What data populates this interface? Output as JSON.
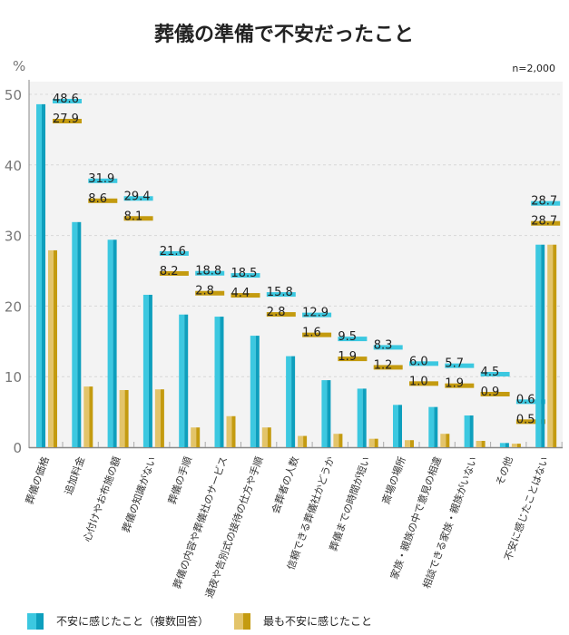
{
  "chart_data": {
    "type": "bar",
    "title": "葬儀の準備で不安だったこと",
    "ylabel": "%",
    "note": "n=2,000",
    "ylim": [
      0,
      50
    ],
    "yticks": [
      0,
      10,
      20,
      30,
      40,
      50
    ],
    "grid": true,
    "legend_position": "bottom-left",
    "categories": [
      "葬儀の価格",
      "追加料金",
      "心付けやお布施の額",
      "葬儀の知識がない",
      "葬儀の手順",
      "葬儀の内容や葬儀社のサービス",
      "通夜や告別式の接待の仕方や手順",
      "会葬者の人数",
      "信頼できる葬儀社かどうか",
      "葬儀までの時間が短い",
      "斎場の場所",
      "家族・親族の中で意見の相違",
      "相談できる家族・親族がいない",
      "その他",
      "不安に感じたことはない"
    ],
    "series": [
      {
        "name": "不安に感じたこと（複数回答）",
        "color": "#29bcd6",
        "values": [
          48.6,
          31.9,
          29.4,
          21.6,
          18.8,
          18.5,
          15.8,
          12.9,
          9.5,
          8.3,
          6.0,
          5.7,
          4.5,
          0.6,
          28.7
        ]
      },
      {
        "name": "最も不安に感じたこと",
        "color": "#c9a21c",
        "values": [
          27.9,
          8.6,
          8.1,
          8.2,
          2.8,
          4.4,
          2.8,
          1.6,
          1.9,
          1.2,
          1.0,
          1.9,
          0.9,
          0.5,
          28.7
        ]
      }
    ]
  }
}
